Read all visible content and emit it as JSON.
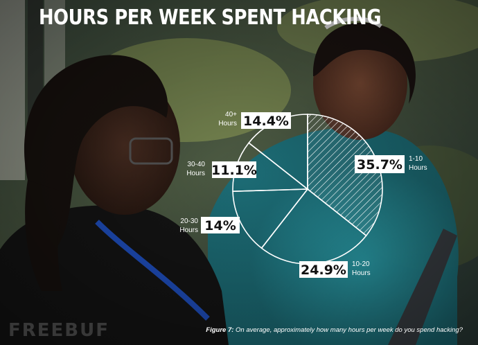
{
  "colors": {
    "outline": "#ffffff",
    "label_box_bg": "#ffffff",
    "label_box_text": "#111111",
    "highlight_hatch": "#ffffff"
  },
  "caption": {
    "prefix": "Figure 7:",
    "text": " On average, approximately how many hours per week do you spend hacking?"
  },
  "watermark": "FREEBUF",
  "chart_data": {
    "type": "pie",
    "title": "HOURS PER WEEK SPENT HACKING",
    "slices": [
      {
        "label": "1-10 Hours",
        "label_lines": [
          "1-10",
          "Hours"
        ],
        "value": 35.7,
        "display": "35.7%",
        "hatched": true
      },
      {
        "label": "10-20 Hours",
        "label_lines": [
          "10-20",
          "Hours"
        ],
        "value": 24.9,
        "display": "24.9%",
        "hatched": false
      },
      {
        "label": "20-30 Hours",
        "label_lines": [
          "20-30",
          "Hours"
        ],
        "value": 14.0,
        "display": "14%",
        "hatched": false
      },
      {
        "label": "30-40 Hours",
        "label_lines": [
          "30-40",
          "Hours"
        ],
        "value": 11.1,
        "display": "11.1%",
        "hatched": false
      },
      {
        "label": "40+ Hours",
        "label_lines": [
          "40+",
          "Hours"
        ],
        "value": 14.4,
        "display": "14.4%",
        "hatched": false
      }
    ],
    "start_angle_deg": 0,
    "direction": "clockwise"
  }
}
